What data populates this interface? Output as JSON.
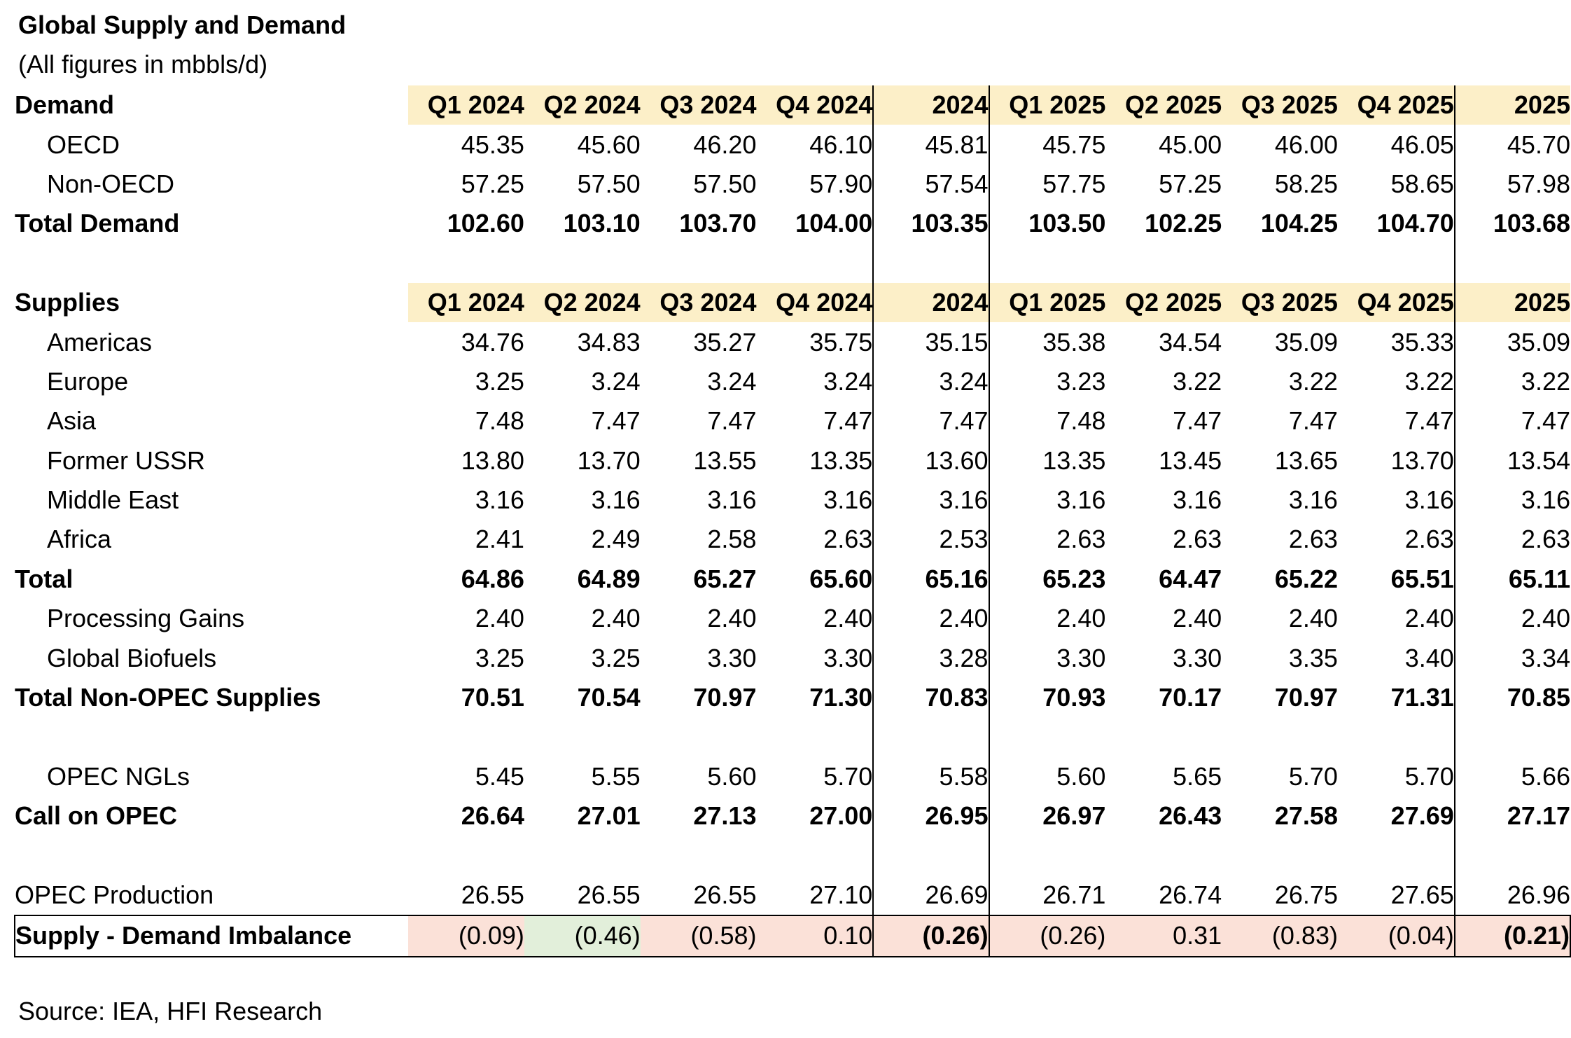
{
  "title": "Global Supply and Demand",
  "subtitle": "(All figures in mbbls/d)",
  "source": "Source: IEA, HFI Research",
  "colors": {
    "header_bg": "#fcefc8",
    "imbalance_bg": "#fbe1d8",
    "imbalance_green_bg": "#e2efda"
  },
  "periods": [
    "Q1 2024",
    "Q2 2024",
    "Q3 2024",
    "Q4 2024",
    "2024",
    "Q1 2025",
    "Q2 2025",
    "Q3 2025",
    "Q4 2025",
    "2025"
  ],
  "rows": [
    {
      "type": "header",
      "label": "Demand"
    },
    {
      "type": "item",
      "indent": true,
      "label": "OECD",
      "values": [
        "45.35",
        "45.60",
        "46.20",
        "46.10",
        "45.81",
        "45.75",
        "45.00",
        "46.00",
        "46.05",
        "45.70"
      ]
    },
    {
      "type": "item",
      "indent": true,
      "label": "Non-OECD",
      "values": [
        "57.25",
        "57.50",
        "57.50",
        "57.90",
        "57.54",
        "57.75",
        "57.25",
        "58.25",
        "58.65",
        "57.98"
      ]
    },
    {
      "type": "total",
      "label": "Total Demand",
      "values": [
        "102.60",
        "103.10",
        "103.70",
        "104.00",
        "103.35",
        "103.50",
        "102.25",
        "104.25",
        "104.70",
        "103.68"
      ]
    },
    {
      "type": "spacer"
    },
    {
      "type": "header",
      "label": "Supplies"
    },
    {
      "type": "item",
      "indent": true,
      "label": "Americas",
      "values": [
        "34.76",
        "34.83",
        "35.27",
        "35.75",
        "35.15",
        "35.38",
        "34.54",
        "35.09",
        "35.33",
        "35.09"
      ]
    },
    {
      "type": "item",
      "indent": true,
      "label": "Europe",
      "values": [
        "3.25",
        "3.24",
        "3.24",
        "3.24",
        "3.24",
        "3.23",
        "3.22",
        "3.22",
        "3.22",
        "3.22"
      ]
    },
    {
      "type": "item",
      "indent": true,
      "label": "Asia",
      "values": [
        "7.48",
        "7.47",
        "7.47",
        "7.47",
        "7.47",
        "7.48",
        "7.47",
        "7.47",
        "7.47",
        "7.47"
      ]
    },
    {
      "type": "item",
      "indent": true,
      "label": "Former USSR",
      "values": [
        "13.80",
        "13.70",
        "13.55",
        "13.35",
        "13.60",
        "13.35",
        "13.45",
        "13.65",
        "13.70",
        "13.54"
      ]
    },
    {
      "type": "item",
      "indent": true,
      "label": "Middle East",
      "values": [
        "3.16",
        "3.16",
        "3.16",
        "3.16",
        "3.16",
        "3.16",
        "3.16",
        "3.16",
        "3.16",
        "3.16"
      ]
    },
    {
      "type": "item",
      "indent": true,
      "label": "Africa",
      "values": [
        "2.41",
        "2.49",
        "2.58",
        "2.63",
        "2.53",
        "2.63",
        "2.63",
        "2.63",
        "2.63",
        "2.63"
      ]
    },
    {
      "type": "total",
      "label": "Total",
      "values": [
        "64.86",
        "64.89",
        "65.27",
        "65.60",
        "65.16",
        "65.23",
        "64.47",
        "65.22",
        "65.51",
        "65.11"
      ]
    },
    {
      "type": "item",
      "indent": true,
      "label": "Processing Gains",
      "values": [
        "2.40",
        "2.40",
        "2.40",
        "2.40",
        "2.40",
        "2.40",
        "2.40",
        "2.40",
        "2.40",
        "2.40"
      ]
    },
    {
      "type": "item",
      "indent": true,
      "label": "Global Biofuels",
      "values": [
        "3.25",
        "3.25",
        "3.30",
        "3.30",
        "3.28",
        "3.30",
        "3.30",
        "3.35",
        "3.40",
        "3.34"
      ]
    },
    {
      "type": "total",
      "label": "Total Non-OPEC Supplies",
      "values": [
        "70.51",
        "70.54",
        "70.97",
        "71.30",
        "70.83",
        "70.93",
        "70.17",
        "70.97",
        "71.31",
        "70.85"
      ]
    },
    {
      "type": "spacer"
    },
    {
      "type": "item",
      "indent": true,
      "label": "OPEC NGLs",
      "values": [
        "5.45",
        "5.55",
        "5.60",
        "5.70",
        "5.58",
        "5.60",
        "5.65",
        "5.70",
        "5.70",
        "5.66"
      ]
    },
    {
      "type": "total",
      "label": "Call on OPEC",
      "values": [
        "26.64",
        "27.01",
        "27.13",
        "27.00",
        "26.95",
        "26.97",
        "26.43",
        "27.58",
        "27.69",
        "27.17"
      ]
    },
    {
      "type": "spacer"
    },
    {
      "type": "item",
      "indent": false,
      "label": "OPEC Production",
      "values": [
        "26.55",
        "26.55",
        "26.55",
        "27.10",
        "26.69",
        "26.71",
        "26.74",
        "26.75",
        "27.65",
        "26.96"
      ]
    },
    {
      "type": "imbalance",
      "label": "Supply - Demand Imbalance",
      "values": [
        "(0.09)",
        "(0.46)",
        "(0.58)",
        "0.10",
        "(0.26)",
        "(0.26)",
        "0.31",
        "(0.83)",
        "(0.04)",
        "(0.21)"
      ]
    }
  ]
}
